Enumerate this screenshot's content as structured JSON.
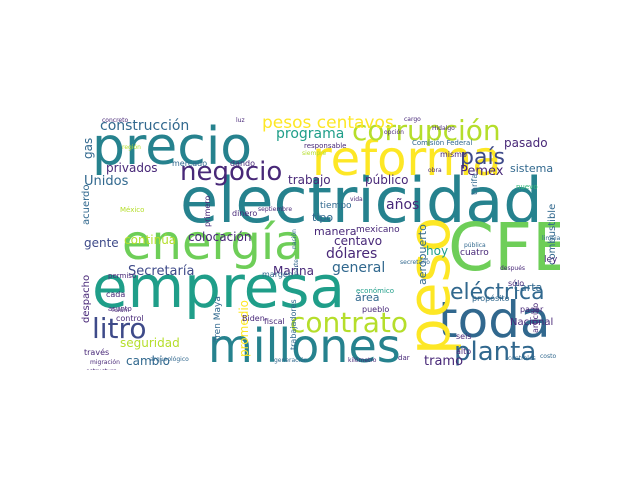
{
  "palette": {
    "dark_purple": "#440154",
    "indigo": "#482878",
    "blue": "#3e4a89",
    "slate": "#31688e",
    "teal": "#26828e",
    "sea": "#1f9e89",
    "green": "#35b779",
    "lime": "#6ece58",
    "yellow_green": "#b5de2b",
    "yellow": "#fde725"
  },
  "words": [
    "electricidad",
    "empresa",
    "CFE",
    "precio",
    "reforma",
    "energía",
    "millones",
    "toda",
    "peso",
    "corrupción",
    "contrato",
    "negocio",
    "planta",
    "litro",
    "país",
    "eléctrica",
    "construcción",
    "pesos centavos",
    "programa",
    "Unidos",
    "privados",
    "trabajo",
    "público",
    "Pemex",
    "años",
    "general",
    "colocación",
    "continúa",
    "gente",
    "Secretaría",
    "Marina",
    "dólares",
    "centavo",
    "manera",
    "mexicano",
    "tipo",
    "seguridad",
    "cambio",
    "promedio",
    "tramo",
    "hoy",
    "pasado",
    "sistema",
    "carta",
    "área",
    "aeropuerto",
    "combustible",
    "Nacional",
    "gas",
    "acuerdo",
    "despacho",
    "mercado",
    "dando",
    "dinero",
    "mismo",
    "tiempo",
    "cuatro",
    "ley",
    "sólo",
    "seis",
    "pagar",
    "alto",
    "propósito",
    "tarifa",
    "artículo",
    "Tren Maya",
    "Biden",
    "margen",
    "fiscal",
    "trabajadores",
    "pueblo",
    "económico",
    "control",
    "permiso",
    "asunto",
    "cada",
    "través",
    "migración",
    "arqueológico",
    "generación",
    "kilómetro",
    "dar",
    "centrales",
    "costo",
    "primero",
    "septiembre",
    "Comisión Federal",
    "responsable",
    "luz",
    "concreto",
    "cargo",
    "opción",
    "Hidalgo",
    "obra",
    "vida",
    "limpia",
    "nuevo",
    "después",
    "secretario",
    "pública",
    "nación",
    "estructura",
    "fulum",
    "siempre",
    "región",
    "México",
    "parte"
  ]
}
